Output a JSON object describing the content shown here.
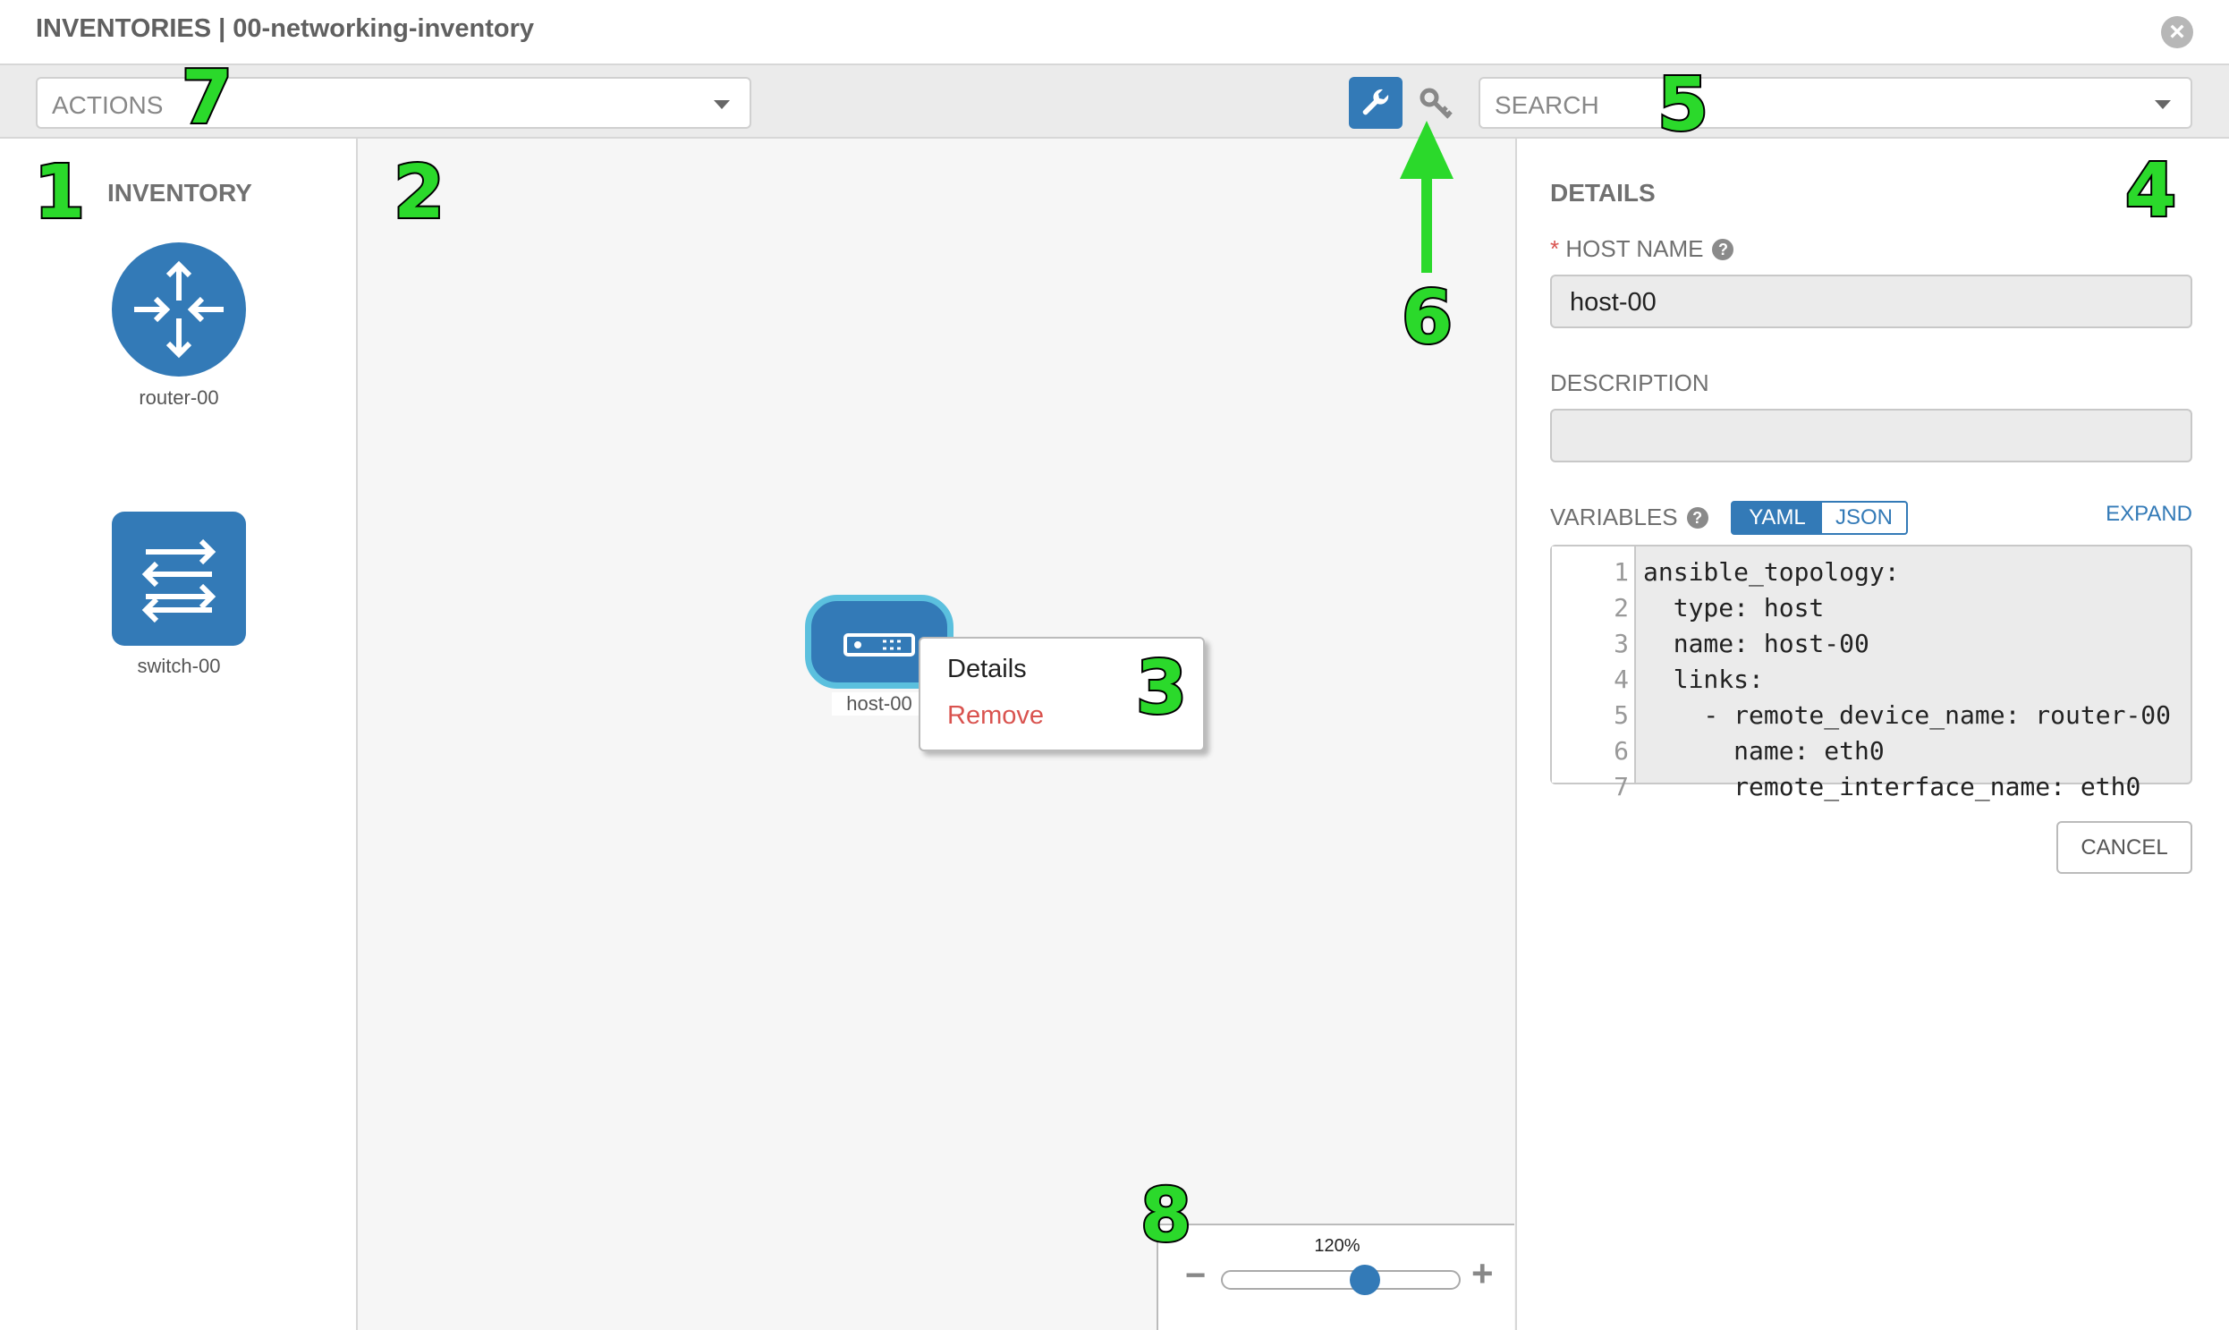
{
  "header": {
    "title": "INVENTORIES | 00-networking-inventory",
    "close_icon": "close-circle-icon"
  },
  "toolbar": {
    "actions_placeholder": "ACTIONS",
    "search_placeholder": "SEARCH",
    "wrench_icon": "wrench-icon",
    "key_icon": "key-icon"
  },
  "inventory": {
    "title": "INVENTORY",
    "items": [
      {
        "label": "router-00",
        "icon": "router-icon"
      },
      {
        "label": "switch-00",
        "icon": "switch-icon"
      }
    ]
  },
  "canvas": {
    "node": {
      "label": "host-00",
      "icon": "server-icon"
    },
    "context_menu": {
      "details": "Details",
      "remove": "Remove"
    }
  },
  "details": {
    "title": "DETAILS",
    "required_marker": "*",
    "host_name_label": "HOST NAME",
    "host_name_value": "host-00",
    "description_label": "DESCRIPTION",
    "description_value": "",
    "variables_label": "VARIABLES",
    "yaml_label": "YAML",
    "json_label": "JSON",
    "active_format": "YAML",
    "expand_label": "EXPAND",
    "cancel_label": "CANCEL",
    "code_lines": [
      {
        "n": "1",
        "t": "ansible_topology:"
      },
      {
        "n": "2",
        "t": "  type: host"
      },
      {
        "n": "3",
        "t": "  name: host-00"
      },
      {
        "n": "4",
        "t": "  links:"
      },
      {
        "n": "5",
        "t": "    - remote_device_name: router-00"
      },
      {
        "n": "6",
        "t": "      name: eth0"
      },
      {
        "n": "7",
        "t": "      remote_interface_name: eth0"
      }
    ]
  },
  "zoom": {
    "label": "120%",
    "value": 120,
    "slider_fraction": 0.6,
    "minus": "−",
    "plus": "+"
  },
  "annotations": [
    "1",
    "2",
    "3",
    "4",
    "5",
    "6",
    "7",
    "8"
  ],
  "colors": {
    "primary": "#337ab7",
    "danger": "#d9534f",
    "annotation": "#2bd92b",
    "selected_border": "#5bc0de"
  }
}
